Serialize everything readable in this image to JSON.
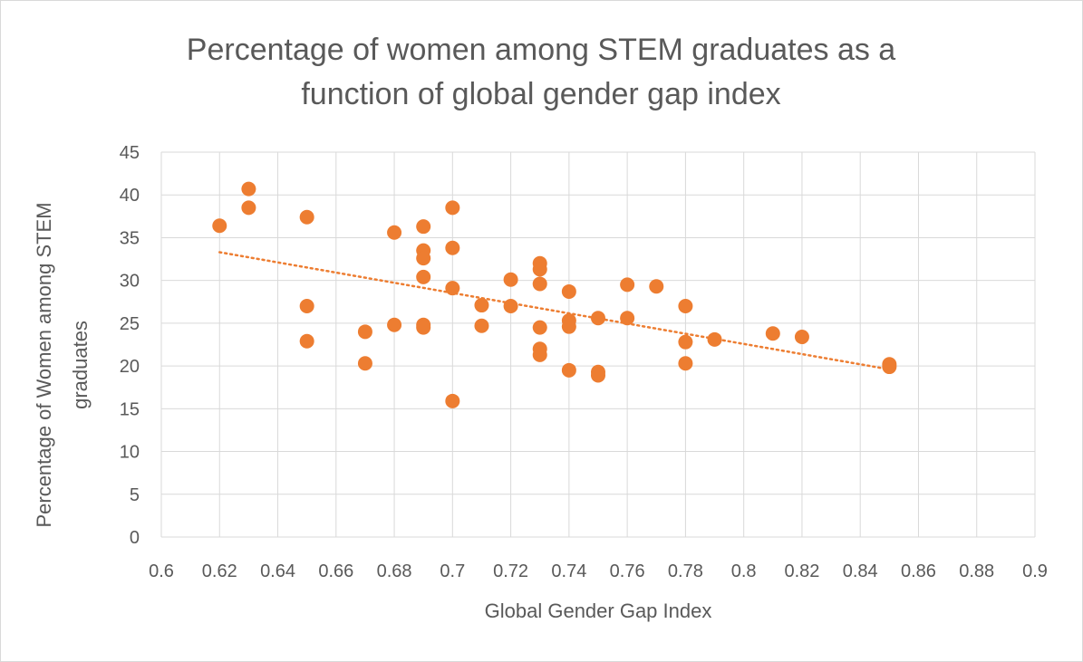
{
  "chart_data": {
    "type": "scatter",
    "title_lines": [
      "Percentage of women among STEM graduates as a",
      "function of global gender gap index"
    ],
    "xlabel": "Global Gender Gap Index",
    "ylabel_lines": [
      "Percentage of Women among STEM",
      "graduates"
    ],
    "xlim": [
      0.6,
      0.9
    ],
    "ylim": [
      0,
      45
    ],
    "x_ticks": [
      "0.6",
      "0.62",
      "0.64",
      "0.66",
      "0.68",
      "0.7",
      "0.72",
      "0.74",
      "0.76",
      "0.78",
      "0.8",
      "0.82",
      "0.84",
      "0.86",
      "0.88",
      "0.9"
    ],
    "y_ticks": [
      "0",
      "5",
      "10",
      "15",
      "20",
      "25",
      "30",
      "35",
      "40",
      "45"
    ],
    "grid": true,
    "legend": "none",
    "marker_color": "#ED7D31",
    "trendline": {
      "type": "linear",
      "style": "dotted",
      "color": "#ED7D31",
      "from": [
        0.62,
        33.3
      ],
      "to": [
        0.85,
        19.6
      ]
    },
    "points": [
      [
        0.62,
        36.4
      ],
      [
        0.63,
        40.7
      ],
      [
        0.63,
        38.5
      ],
      [
        0.65,
        37.4
      ],
      [
        0.65,
        27.0
      ],
      [
        0.65,
        22.9
      ],
      [
        0.67,
        24.0
      ],
      [
        0.67,
        20.3
      ],
      [
        0.68,
        35.6
      ],
      [
        0.68,
        24.8
      ],
      [
        0.69,
        36.3
      ],
      [
        0.69,
        33.5
      ],
      [
        0.69,
        32.6
      ],
      [
        0.69,
        30.4
      ],
      [
        0.69,
        24.8
      ],
      [
        0.69,
        24.5
      ],
      [
        0.7,
        38.5
      ],
      [
        0.7,
        33.8
      ],
      [
        0.7,
        29.1
      ],
      [
        0.7,
        15.9
      ],
      [
        0.71,
        27.1
      ],
      [
        0.71,
        24.7
      ],
      [
        0.72,
        30.1
      ],
      [
        0.72,
        27.0
      ],
      [
        0.73,
        32.0
      ],
      [
        0.73,
        31.3
      ],
      [
        0.73,
        29.6
      ],
      [
        0.73,
        24.5
      ],
      [
        0.73,
        22.0
      ],
      [
        0.73,
        21.3
      ],
      [
        0.74,
        28.7
      ],
      [
        0.74,
        25.3
      ],
      [
        0.74,
        24.6
      ],
      [
        0.74,
        19.5
      ],
      [
        0.75,
        25.6
      ],
      [
        0.75,
        19.3
      ],
      [
        0.75,
        18.9
      ],
      [
        0.76,
        29.5
      ],
      [
        0.76,
        25.6
      ],
      [
        0.77,
        29.3
      ],
      [
        0.78,
        27.0
      ],
      [
        0.78,
        22.8
      ],
      [
        0.78,
        20.3
      ],
      [
        0.79,
        23.1
      ],
      [
        0.81,
        23.8
      ],
      [
        0.82,
        23.4
      ],
      [
        0.85,
        20.2
      ],
      [
        0.85,
        19.9
      ]
    ]
  }
}
